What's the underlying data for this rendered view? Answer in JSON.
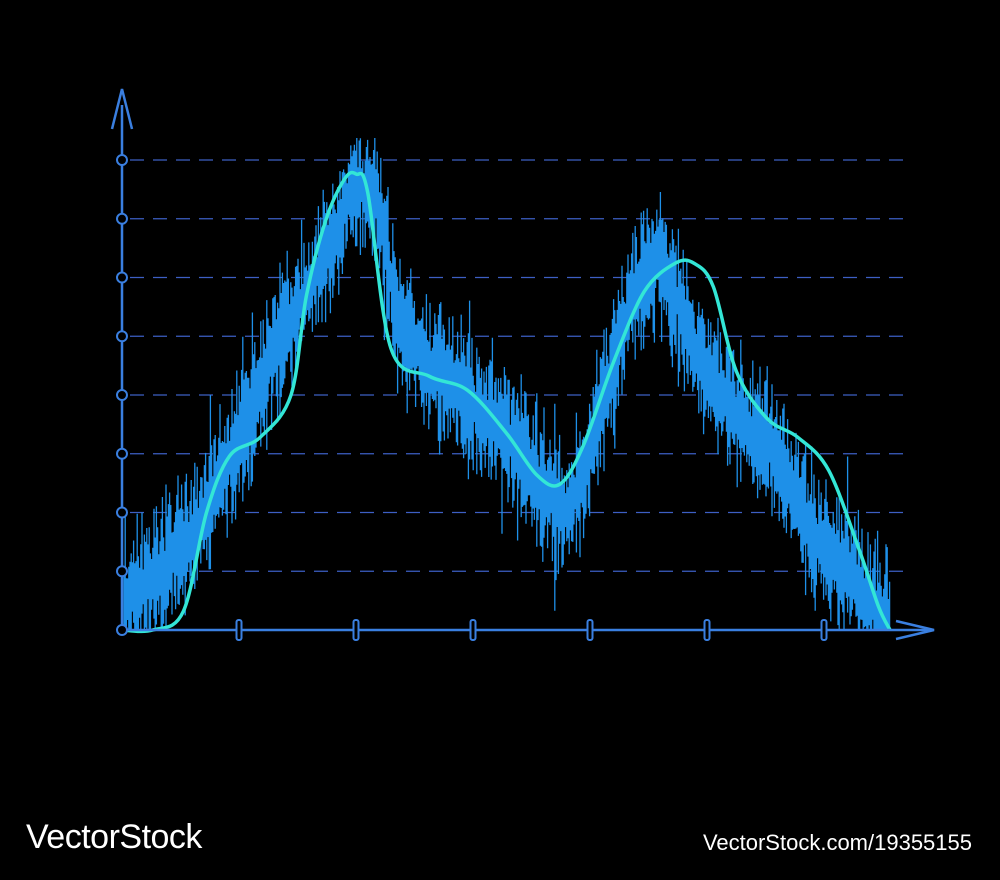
{
  "chart_data": {
    "type": "line",
    "title": "",
    "xlabel": "",
    "ylabel": "",
    "grid": true,
    "x_ticks": 6,
    "y_ticks": 8,
    "xlim": [
      0,
      1
    ],
    "ylim": [
      0,
      1
    ],
    "colors": {
      "axis": "#3a7fe0",
      "grid": "#3d5fc4",
      "noise": "#1e90e8",
      "smooth": "#33e6d6",
      "background": "#000000"
    },
    "series": [
      {
        "style": "noisy-band",
        "x": [
          0.0,
          0.05,
          0.1,
          0.15,
          0.2,
          0.25,
          0.28,
          0.3,
          0.33,
          0.36,
          0.4,
          0.45,
          0.5,
          0.55,
          0.58,
          0.6,
          0.63,
          0.66,
          0.7,
          0.75,
          0.8,
          0.85,
          0.9,
          0.95,
          1.0
        ],
        "y": [
          0.06,
          0.12,
          0.22,
          0.4,
          0.6,
          0.75,
          0.84,
          0.95,
          0.93,
          0.66,
          0.56,
          0.49,
          0.42,
          0.3,
          0.25,
          0.33,
          0.5,
          0.69,
          0.8,
          0.58,
          0.45,
          0.38,
          0.2,
          0.12,
          0.0
        ]
      },
      {
        "style": "smooth-curve",
        "x": [
          0.0,
          0.04,
          0.08,
          0.11,
          0.14,
          0.18,
          0.22,
          0.24,
          0.265,
          0.29,
          0.305,
          0.32,
          0.35,
          0.4,
          0.45,
          0.5,
          0.54,
          0.57,
          0.6,
          0.64,
          0.68,
          0.72,
          0.745,
          0.77,
          0.8,
          0.84,
          0.88,
          0.92,
          0.96,
          0.985,
          1.0
        ],
        "y": [
          0.0,
          0.0,
          0.04,
          0.25,
          0.37,
          0.41,
          0.5,
          0.71,
          0.87,
          0.96,
          0.97,
          0.93,
          0.6,
          0.54,
          0.51,
          0.42,
          0.33,
          0.31,
          0.39,
          0.57,
          0.72,
          0.78,
          0.78,
          0.73,
          0.55,
          0.45,
          0.41,
          0.34,
          0.17,
          0.05,
          0.0
        ]
      }
    ]
  },
  "watermark": {
    "brand": "VectorStock",
    "url": "VectorStock.com/19355155"
  }
}
